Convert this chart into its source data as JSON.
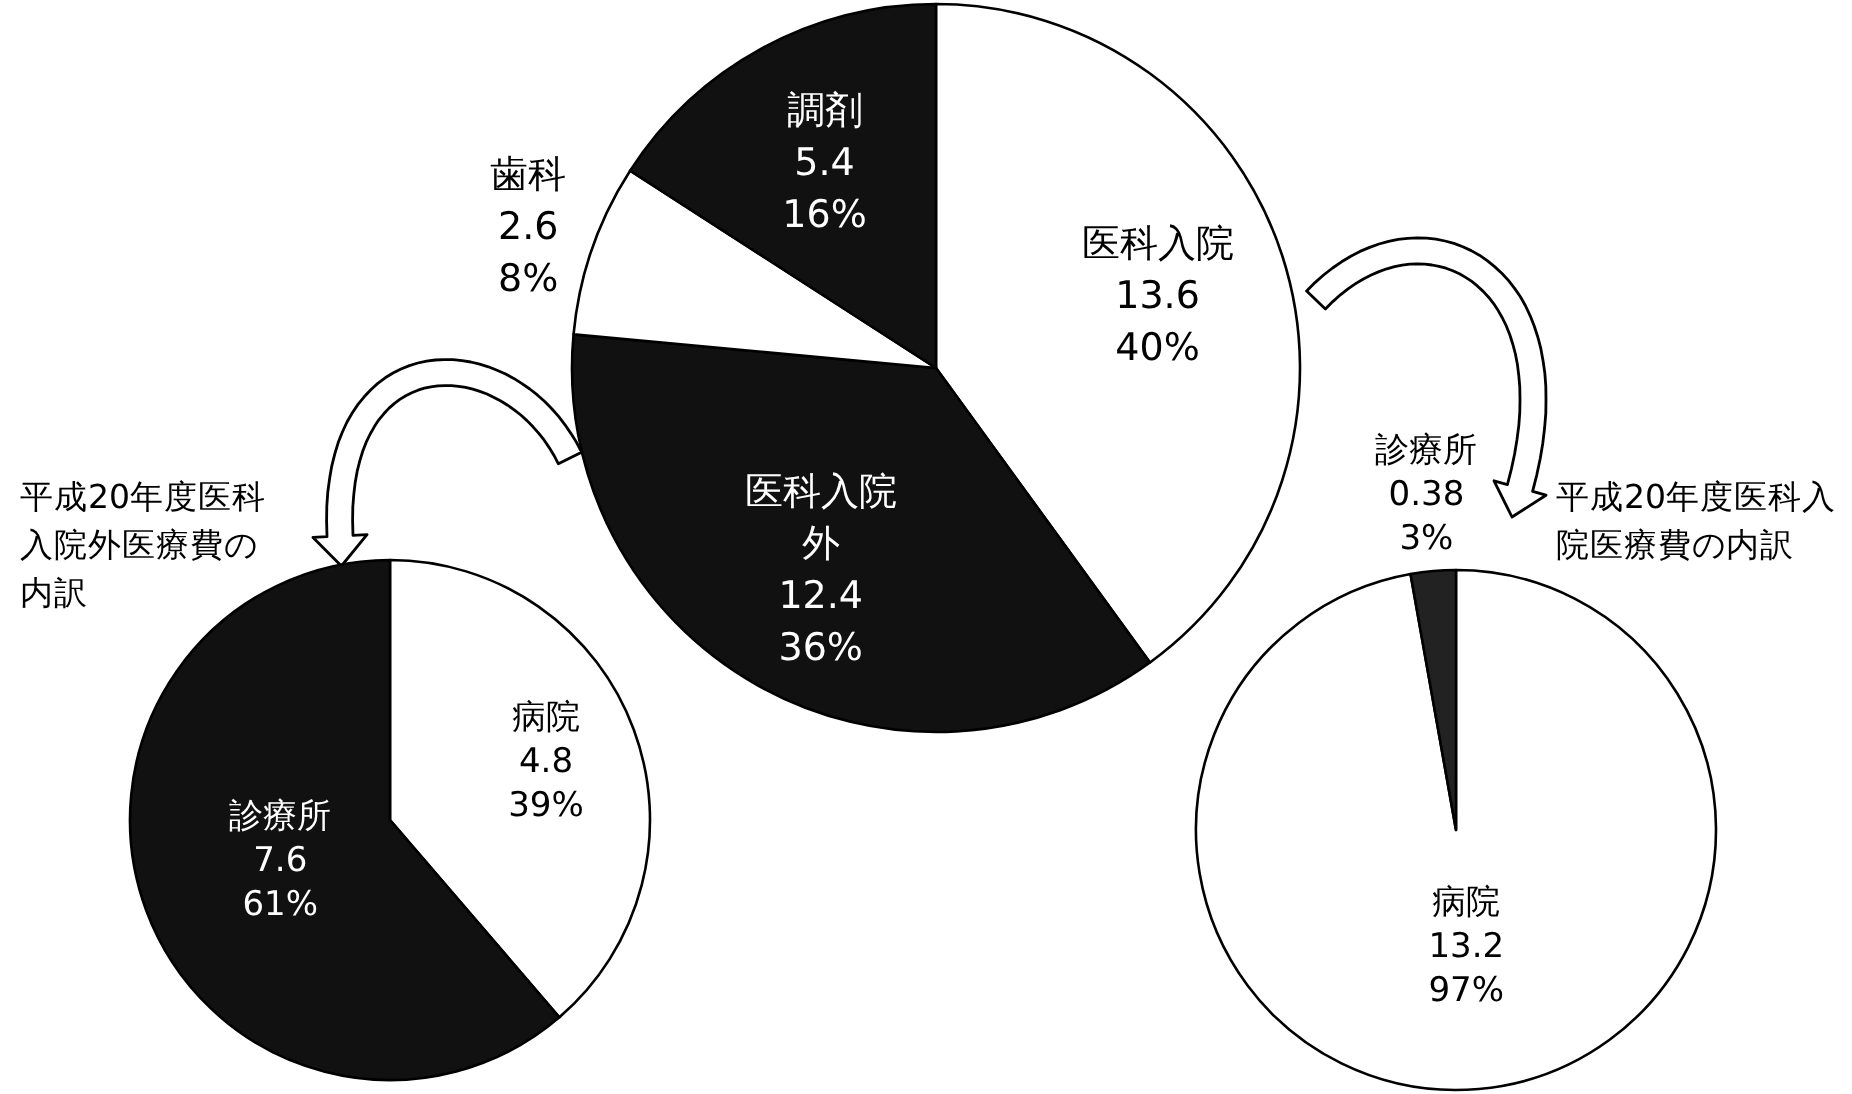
{
  "chart_data": [
    {
      "type": "pie",
      "categories": [
        "医科入院",
        "医科入院外",
        "歯科",
        "調剤"
      ],
      "values": [
        13.6,
        12.4,
        2.6,
        5.4
      ],
      "value_labels": [
        "13.6\n40%",
        "12.4\n36%",
        "2.6\n8%",
        "5.4\n16%"
      ],
      "colors": [
        "#ffffff",
        "#111111",
        "#ffffff",
        "#111111"
      ]
    },
    {
      "type": "pie",
      "title": "平成20年度医科入院外医療費の内訳",
      "categories": [
        "病院",
        "診療所"
      ],
      "values": [
        4.8,
        7.6
      ],
      "value_labels": [
        "4.8\n39%",
        "7.6\n61%"
      ],
      "colors": [
        "#ffffff",
        "#111111"
      ]
    },
    {
      "type": "pie",
      "title": "平成20年度医科入院医療費の内訳",
      "categories": [
        "病院",
        "診療所"
      ],
      "values": [
        13.2,
        0.38
      ],
      "value_labels": [
        "13.2\n97%",
        "0.38\n3%"
      ],
      "colors": [
        "#ffffff",
        "#222222"
      ]
    }
  ]
}
